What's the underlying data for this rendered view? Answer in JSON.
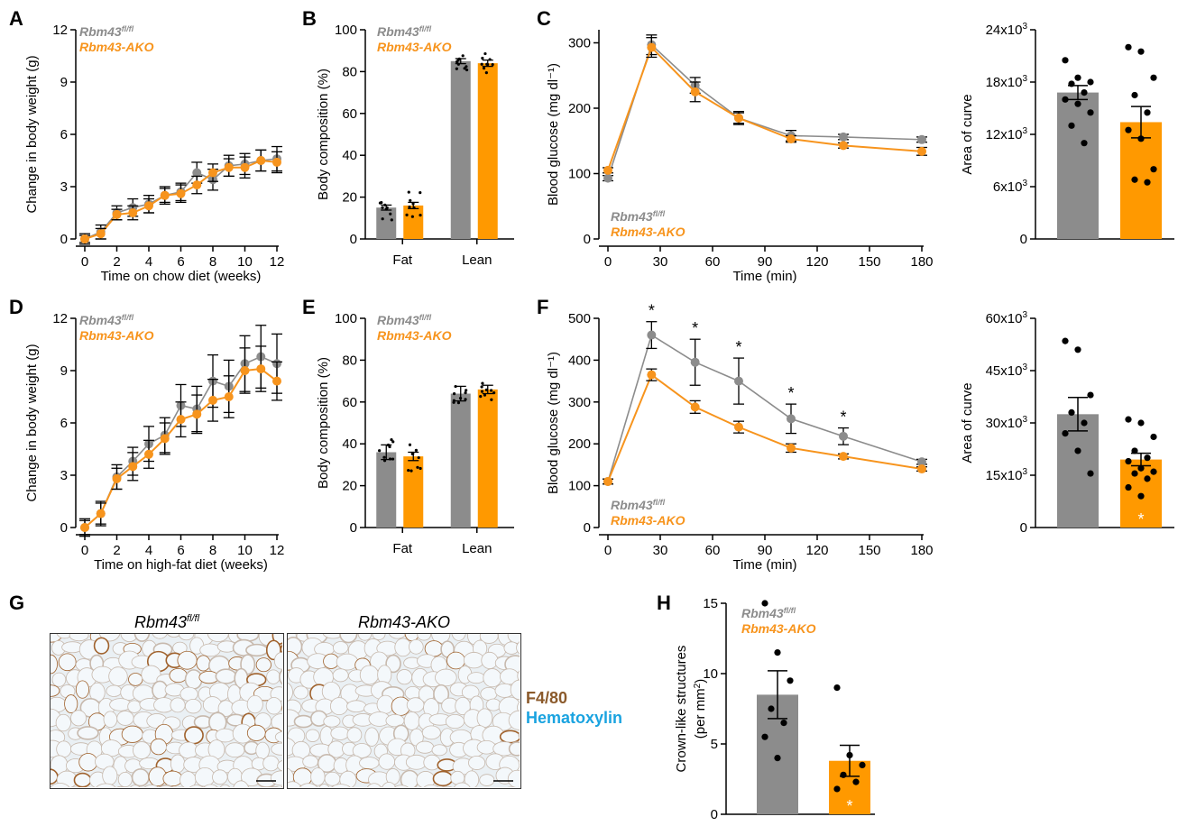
{
  "panel_letters": [
    "A",
    "B",
    "C",
    "D",
    "E",
    "F",
    "G",
    "H"
  ],
  "legend": {
    "ctrl_name": "Rbm43",
    "ctrl_sup": "fl/fl",
    "ko_name": "Rbm43-AKO"
  },
  "colors": {
    "ctrl": "#8c8c8c",
    "ko": "#f7941d",
    "ko_bar": "#ff9900",
    "stain_f480": "#8b5a2b",
    "stain_hema": "#1aa3e0"
  },
  "image_panel": {
    "left_title": "Rbm43",
    "left_title_sup": "fl/fl",
    "right_title": "Rbm43-AKO",
    "stain_1": "F4/80",
    "stain_2": "Hematoxylin"
  },
  "chart_data": [
    {
      "id": "A",
      "type": "line",
      "title": "",
      "xlabel": "Time on chow diet (weeks)",
      "ylabel": "Change in body weight (g)",
      "xlim": [
        0,
        12
      ],
      "ylim": [
        0,
        12
      ],
      "xticks": [
        0,
        2,
        4,
        6,
        8,
        10,
        12
      ],
      "yticks": [
        0,
        3,
        6,
        9,
        12
      ],
      "x": [
        0,
        1,
        2,
        3,
        4,
        5,
        6,
        7,
        8,
        9,
        10,
        11,
        12
      ],
      "series": [
        {
          "name": "Rbm43 fl/fl",
          "values": [
            0,
            0.4,
            1.5,
            1.8,
            2.0,
            2.5,
            2.7,
            3.8,
            3.4,
            4.2,
            4.3,
            4.5,
            4.6
          ],
          "err": [
            0.3,
            0.4,
            0.4,
            0.5,
            0.5,
            0.5,
            0.5,
            0.6,
            0.6,
            0.6,
            0.6,
            0.6,
            0.7
          ]
        },
        {
          "name": "Rbm43-AKO",
          "values": [
            0,
            0.3,
            1.4,
            1.5,
            1.9,
            2.5,
            2.6,
            3.1,
            3.8,
            4.1,
            4.1,
            4.5,
            4.4
          ],
          "err": [
            0.2,
            0.3,
            0.3,
            0.4,
            0.4,
            0.4,
            0.5,
            0.5,
            0.5,
            0.5,
            0.6,
            0.6,
            0.6
          ]
        }
      ]
    },
    {
      "id": "B",
      "type": "bar",
      "xlabel": "",
      "ylabel": "Body composition (%)",
      "categories": [
        "Fat",
        "Lean"
      ],
      "ylim": [
        0,
        100
      ],
      "yticks": [
        0,
        20,
        40,
        60,
        80,
        100
      ],
      "series": [
        {
          "name": "Rbm43 fl/fl",
          "values": [
            15,
            85
          ],
          "err": [
            1.2,
            1.2
          ]
        },
        {
          "name": "Rbm43-AKO",
          "values": [
            16,
            84
          ],
          "err": [
            1.5,
            1.5
          ]
        }
      ]
    },
    {
      "id": "C",
      "type": "line",
      "xlabel": "Time (min)",
      "ylabel": "Blood glucose (mg dl⁻¹)",
      "xlim": [
        0,
        180
      ],
      "ylim": [
        0,
        320
      ],
      "xticks": [
        0,
        30,
        60,
        90,
        120,
        150,
        180
      ],
      "yticks": [
        0,
        100,
        200,
        300
      ],
      "x": [
        0,
        25,
        50,
        75,
        105,
        135,
        180
      ],
      "series": [
        {
          "name": "Rbm43 fl/fl",
          "values": [
            93,
            297,
            235,
            185,
            158,
            156,
            152
          ],
          "err": [
            4,
            15,
            12,
            10,
            8,
            4,
            4
          ]
        },
        {
          "name": "Rbm43-AKO",
          "values": [
            105,
            293,
            225,
            185,
            153,
            143,
            134
          ],
          "err": [
            4,
            15,
            15,
            8,
            5,
            4,
            6
          ]
        }
      ]
    },
    {
      "id": "C2",
      "type": "bar",
      "ylabel": "Area of curve",
      "categories": [
        "Rbm43 fl/fl",
        "Rbm43-AKO"
      ],
      "ylim": [
        0,
        24000
      ],
      "yticks": [
        0,
        6000,
        12000,
        18000,
        24000
      ],
      "ytick_labels": [
        "0",
        "6x10³",
        "12x10³",
        "18x10³",
        "24x10³"
      ],
      "values": [
        16800,
        13400
      ],
      "err": [
        800,
        1800
      ]
    },
    {
      "id": "D",
      "type": "line",
      "xlabel": "Time on high-fat diet (weeks)",
      "ylabel": "Change in body weight (g)",
      "xlim": [
        0,
        12
      ],
      "ylim": [
        0,
        12
      ],
      "xticks": [
        0,
        2,
        4,
        6,
        8,
        10,
        12
      ],
      "yticks": [
        0,
        3,
        6,
        9,
        12
      ],
      "x": [
        0,
        1,
        2,
        3,
        4,
        5,
        6,
        7,
        8,
        9,
        10,
        11,
        12
      ],
      "series": [
        {
          "name": "Rbm43 fl/fl",
          "values": [
            0,
            0.8,
            2.9,
            3.8,
            4.8,
            5.3,
            7.0,
            6.8,
            8.4,
            8.1,
            9.4,
            9.8,
            9.4
          ],
          "err": [
            0.5,
            0.7,
            0.7,
            0.8,
            1.0,
            1.0,
            1.2,
            1.3,
            1.5,
            1.5,
            1.6,
            1.8,
            1.7
          ]
        },
        {
          "name": "Rbm43-AKO",
          "values": [
            0,
            0.8,
            2.8,
            3.5,
            4.2,
            5.1,
            6.2,
            6.5,
            7.3,
            7.5,
            9.0,
            9.1,
            8.4
          ],
          "err": [
            0.4,
            0.6,
            0.6,
            0.8,
            0.8,
            0.9,
            1.0,
            1.1,
            1.2,
            1.2,
            1.3,
            1.3,
            1.1
          ]
        }
      ]
    },
    {
      "id": "E",
      "type": "bar",
      "ylabel": "Body composition (%)",
      "categories": [
        "Fat",
        "Lean"
      ],
      "ylim": [
        0,
        100
      ],
      "yticks": [
        0,
        20,
        40,
        60,
        80,
        100
      ],
      "series": [
        {
          "name": "Rbm43 fl/fl",
          "values": [
            36,
            64
          ],
          "err": [
            3.5,
            3.5
          ]
        },
        {
          "name": "Rbm43-AKO",
          "values": [
            34,
            66
          ],
          "err": [
            2.0,
            2.0
          ]
        }
      ]
    },
    {
      "id": "F",
      "type": "line",
      "xlabel": "Time (min)",
      "ylabel": "Blood glucose (mg dl⁻¹)",
      "xlim": [
        0,
        180
      ],
      "ylim": [
        0,
        500
      ],
      "xticks": [
        0,
        30,
        60,
        90,
        120,
        150,
        180
      ],
      "yticks": [
        0,
        100,
        200,
        300,
        400,
        500
      ],
      "x": [
        0,
        25,
        50,
        75,
        105,
        135,
        180
      ],
      "series": [
        {
          "name": "Rbm43 fl/fl",
          "values": [
            110,
            460,
            395,
            350,
            260,
            218,
            157
          ],
          "err": [
            6,
            32,
            55,
            55,
            35,
            20,
            6
          ]
        },
        {
          "name": "Rbm43-AKO",
          "values": [
            110,
            365,
            288,
            240,
            190,
            170,
            140
          ],
          "err": [
            6,
            14,
            15,
            14,
            10,
            6,
            5
          ]
        }
      ],
      "annotations": [
        "*",
        "*",
        "*",
        "*",
        "*"
      ]
    },
    {
      "id": "F2",
      "type": "bar",
      "ylabel": "Area of curve",
      "categories": [
        "Rbm43 fl/fl",
        "Rbm43-AKO"
      ],
      "ylim": [
        0,
        60000
      ],
      "yticks": [
        0,
        15000,
        30000,
        45000,
        60000
      ],
      "ytick_labels": [
        "0",
        "15x10³",
        "30x10³",
        "45x10³",
        "60x10³"
      ],
      "values": [
        32500,
        19500
      ],
      "err": [
        4800,
        1800
      ],
      "annotations": [
        "*"
      ]
    },
    {
      "id": "H",
      "type": "bar",
      "ylabel": "Crown-like structures (per mm²)",
      "categories": [
        "Rbm43 fl/fl",
        "Rbm43-AKO"
      ],
      "ylim": [
        0,
        15
      ],
      "yticks": [
        0,
        5,
        10,
        15
      ],
      "values": [
        8.5,
        3.8
      ],
      "err": [
        1.7,
        1.1
      ],
      "annotations": [
        "*"
      ]
    }
  ]
}
